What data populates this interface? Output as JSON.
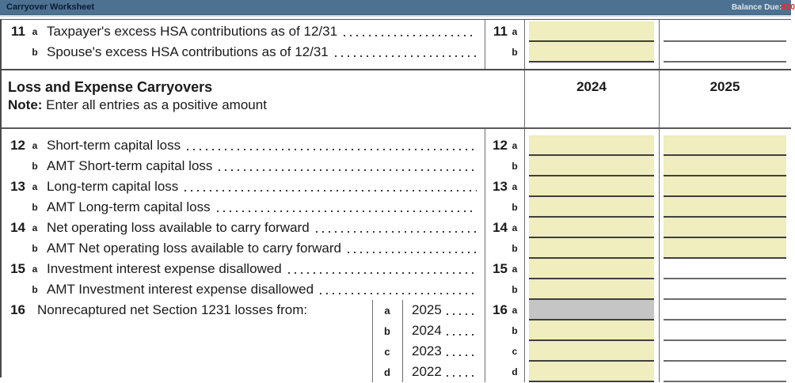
{
  "titlebar": {
    "title": "Carryover Worksheet",
    "balance_label": "Balance Due:",
    "balance_amount": "$10"
  },
  "colors": {
    "titlebar_bg": "#4C7191",
    "titlebar_title": "#0D1C2E",
    "balance_amount_red": "#FF2222",
    "field_yellow": "#F0EDBF",
    "field_gray": "#C5C5C5",
    "field_underline": "#3F3F3F"
  },
  "hsa": {
    "rows": [
      {
        "num": "11",
        "letter": "a",
        "label": "Taxpayer's excess HSA contributions as of 12/31",
        "field_2024": "yellow-input",
        "field_2025": "underline"
      },
      {
        "num": "",
        "letter": "b",
        "label": "Spouse's excess HSA contributions as of 12/31",
        "field_2024": "yellow-input",
        "field_2025": "underline"
      }
    ]
  },
  "header": {
    "title": "Loss and Expense Carryovers",
    "note_label": "Note:",
    "note_text": " Enter all entries as a positive amount",
    "col_2024": "2024",
    "col_2025": "2025"
  },
  "co": {
    "rows": [
      {
        "num": "12",
        "letter": "a",
        "label": "Short-term capital loss",
        "field_2024": "yellow-input",
        "field_2025": "yellow-input"
      },
      {
        "num": "",
        "letter": "b",
        "label": "AMT Short-term capital loss",
        "field_2024": "yellow-input",
        "field_2025": "yellow-input"
      },
      {
        "num": "13",
        "letter": "a",
        "label": "Long-term capital loss",
        "field_2024": "yellow-input",
        "field_2025": "yellow-input"
      },
      {
        "num": "",
        "letter": "b",
        "label": "AMT Long-term capital loss",
        "field_2024": "yellow-input",
        "field_2025": "yellow-input"
      },
      {
        "num": "14",
        "letter": "a",
        "label": "Net operating loss available to carry forward",
        "field_2024": "yellow-input",
        "field_2025": "yellow-input"
      },
      {
        "num": "",
        "letter": "b",
        "label": "AMT Net operating loss available to carry forward",
        "field_2024": "yellow-input",
        "field_2025": "yellow-input"
      },
      {
        "num": "15",
        "letter": "a",
        "label": "Investment interest expense disallowed",
        "field_2024": "yellow-input",
        "field_2025": "underline"
      },
      {
        "num": "",
        "letter": "b",
        "label": "AMT Investment interest expense disallowed",
        "field_2024": "yellow-input",
        "field_2025": "underline"
      },
      {
        "num": "16",
        "letter": "a",
        "label": "Nonrecaptured net Section 1231 losses from:",
        "sub_letter": "a",
        "sub_year": "2025",
        "field_2024": "gray-calculated",
        "field_2025": "underline"
      },
      {
        "num": "",
        "letter": "b",
        "label": "",
        "sub_letter": "b",
        "sub_year": "2024",
        "field_2024": "yellow-input",
        "field_2025": "underline"
      },
      {
        "num": "",
        "letter": "c",
        "label": "",
        "sub_letter": "c",
        "sub_year": "2023",
        "field_2024": "yellow-input",
        "field_2025": "underline"
      },
      {
        "num": "",
        "letter": "d",
        "label": "",
        "sub_letter": "d",
        "sub_year": "2022",
        "field_2024": "yellow-input",
        "field_2025": "underline"
      }
    ]
  }
}
